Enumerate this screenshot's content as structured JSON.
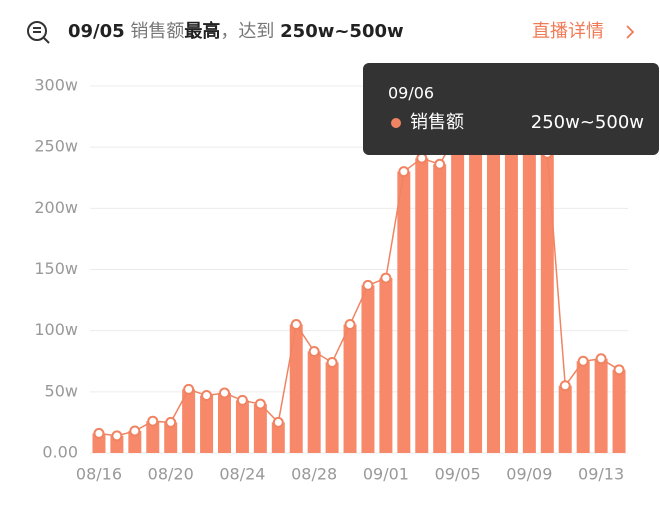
{
  "header": {
    "date": "09/05",
    "metric": "销售额",
    "highlight": "最高",
    "connector": "，达到",
    "range": "250w~500w",
    "link": "直播详情"
  },
  "chart_data": {
    "type": "bar_line",
    "categories": [
      "08/16",
      null,
      null,
      null,
      "08/20",
      null,
      null,
      null,
      "08/24",
      null,
      null,
      null,
      "08/28",
      null,
      null,
      null,
      "09/01",
      null,
      null,
      null,
      "09/05",
      null,
      null,
      null,
      "09/09",
      null,
      null,
      null,
      "09/13",
      null
    ],
    "values": [
      16,
      14,
      18,
      26,
      25,
      52,
      47,
      49,
      43,
      40,
      25,
      105,
      83,
      74,
      105,
      137,
      143,
      230,
      241,
      236,
      262,
      250,
      250,
      254,
      250,
      245,
      55,
      75,
      77,
      68
    ],
    "bar_color": "#f7896a",
    "line_color": "#f08462",
    "ylim": [
      0,
      300
    ],
    "yticks": [
      {
        "value": 0,
        "label": "0.00"
      },
      {
        "value": 50,
        "label": "50w"
      },
      {
        "value": 100,
        "label": "100w"
      },
      {
        "value": 150,
        "label": "150w"
      },
      {
        "value": 200,
        "label": "200w"
      },
      {
        "value": 250,
        "label": "250w"
      },
      {
        "value": 300,
        "label": "300w"
      }
    ],
    "grid": true,
    "tooltip": {
      "date": "09/06",
      "series_name": "销售额",
      "value_label": "250w~500w"
    }
  }
}
